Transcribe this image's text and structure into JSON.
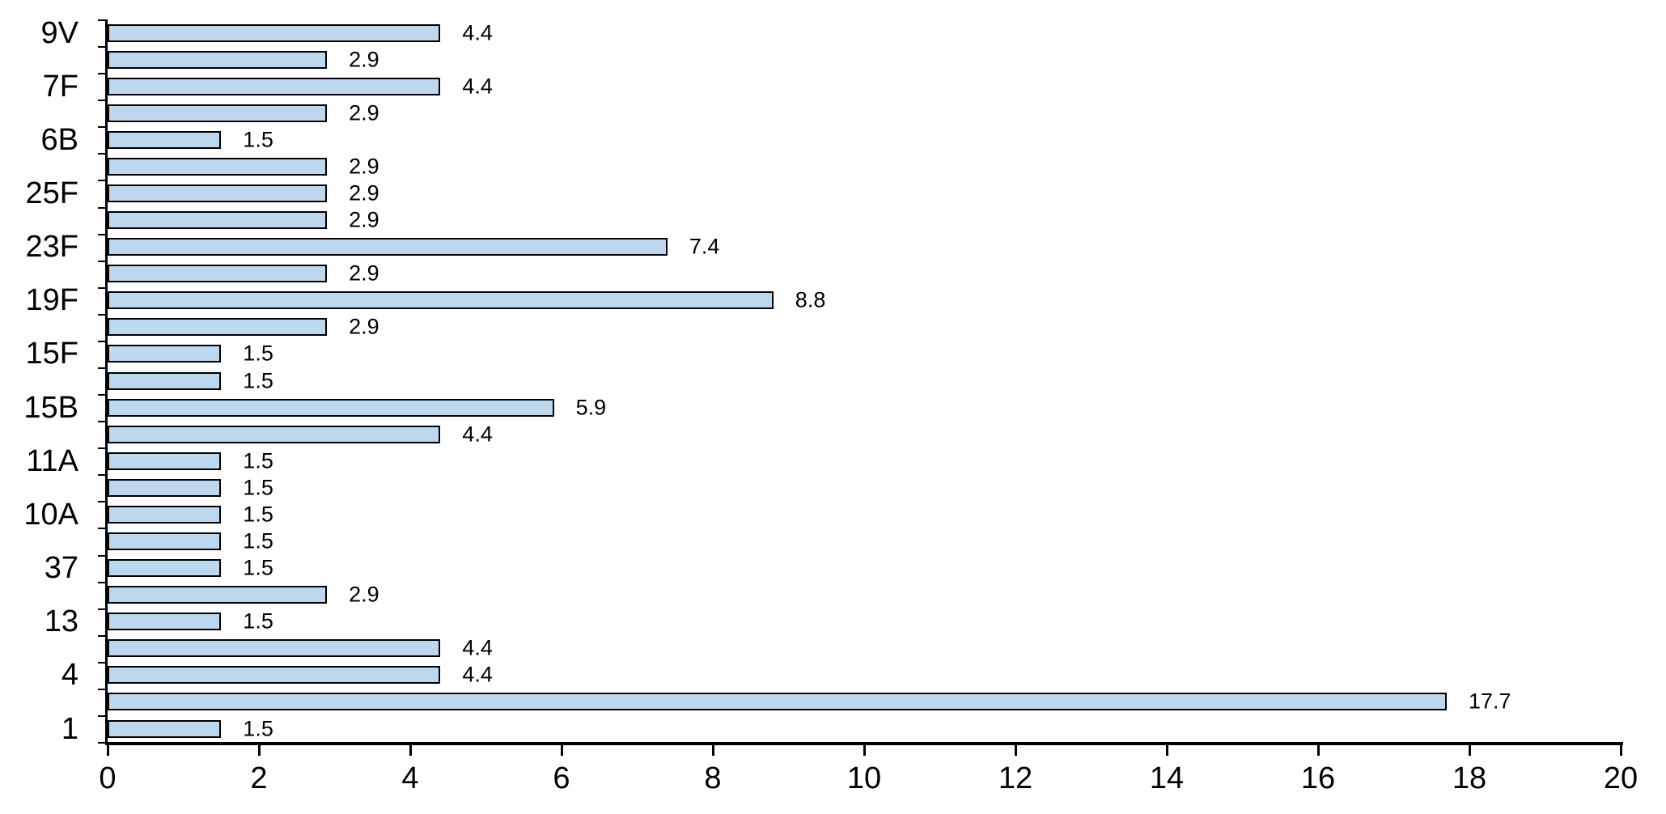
{
  "chart_data": {
    "type": "bar",
    "orientation": "horizontal",
    "title": "",
    "xlabel": "",
    "ylabel": "",
    "xlim": [
      0,
      20
    ],
    "x_ticks": [
      "0",
      "2",
      "4",
      "6",
      "8",
      "10",
      "12",
      "14",
      "16",
      "18",
      "20"
    ],
    "grid": false,
    "legend": false,
    "y_label_interval": 2,
    "colors": {
      "bar_fill": "#BDD7EE",
      "bar_border": "#000000",
      "axis": "#000000",
      "text": "#000000",
      "background": "#ffffff"
    },
    "bars": [
      {
        "category": "9V",
        "value": 4.4,
        "label": "4.4"
      },
      {
        "category": "",
        "value": 2.9,
        "label": "2.9"
      },
      {
        "category": "7F",
        "value": 4.4,
        "label": "4.4"
      },
      {
        "category": "",
        "value": 2.9,
        "label": "2.9"
      },
      {
        "category": "6B",
        "value": 1.5,
        "label": "1.5"
      },
      {
        "category": "",
        "value": 2.9,
        "label": "2.9"
      },
      {
        "category": "25F",
        "value": 2.9,
        "label": "2.9"
      },
      {
        "category": "",
        "value": 2.9,
        "label": "2.9"
      },
      {
        "category": "23F",
        "value": 7.4,
        "label": "7.4"
      },
      {
        "category": "",
        "value": 2.9,
        "label": "2.9"
      },
      {
        "category": "19F",
        "value": 8.8,
        "label": "8.8"
      },
      {
        "category": "",
        "value": 2.9,
        "label": "2.9"
      },
      {
        "category": "15F",
        "value": 1.5,
        "label": "1.5"
      },
      {
        "category": "",
        "value": 1.5,
        "label": "1.5"
      },
      {
        "category": "15B",
        "value": 5.9,
        "label": "5.9"
      },
      {
        "category": "",
        "value": 4.4,
        "label": "4.4"
      },
      {
        "category": "11A",
        "value": 1.5,
        "label": "1.5"
      },
      {
        "category": "",
        "value": 1.5,
        "label": "1.5"
      },
      {
        "category": "10A",
        "value": 1.5,
        "label": "1.5"
      },
      {
        "category": "",
        "value": 1.5,
        "label": "1.5"
      },
      {
        "category": "37",
        "value": 1.5,
        "label": "1.5"
      },
      {
        "category": "",
        "value": 2.9,
        "label": "2.9"
      },
      {
        "category": "13",
        "value": 1.5,
        "label": "1.5"
      },
      {
        "category": "",
        "value": 4.4,
        "label": "4.4"
      },
      {
        "category": "4",
        "value": 4.4,
        "label": "4.4"
      },
      {
        "category": "",
        "value": 17.7,
        "label": "17.7"
      },
      {
        "category": "1",
        "value": 1.5,
        "label": "1.5"
      }
    ]
  }
}
